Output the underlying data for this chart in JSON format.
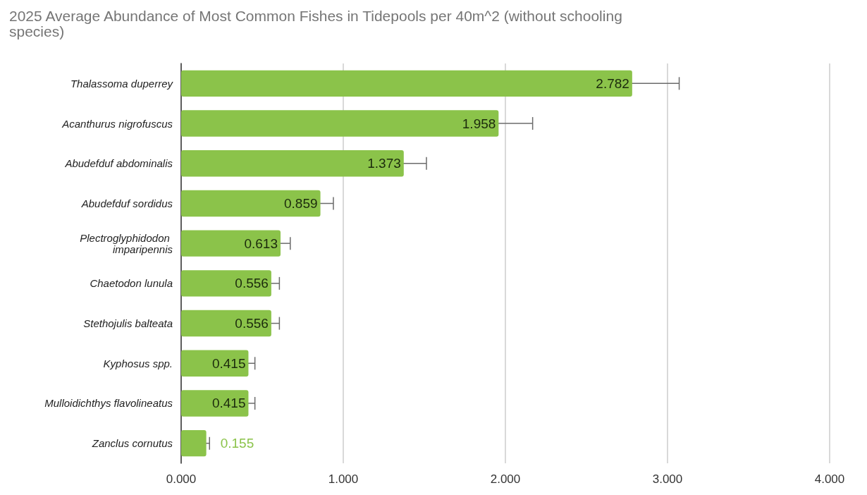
{
  "chart_data": {
    "type": "bar",
    "orientation": "horizontal",
    "title": "2025 Average Abundance of Most Common Fishes in Tidepools per 40m^2 (without schooling species)",
    "categories": [
      "Thalassoma duperrey",
      "Acanthurus nigrofuscus",
      "Abudefduf abdominalis",
      "Abudefduf sordidus",
      "Plectroglyphidodon imparipennis",
      "Chaetodon lunula",
      "Stethojulis balteata",
      "Kyphosus spp.",
      "Mulloidichthys flavolineatus",
      "Zanclus cornutus"
    ],
    "values": [
      2.782,
      1.958,
      1.373,
      0.859,
      0.613,
      0.556,
      0.556,
      0.415,
      0.415,
      0.155
    ],
    "errors": [
      0.29,
      0.21,
      0.14,
      0.08,
      0.06,
      0.05,
      0.05,
      0.04,
      0.04,
      0.02
    ],
    "color": "#8bc34a",
    "xlim": [
      0,
      4
    ],
    "xticks": [
      {
        "value": 0,
        "label": "0.000"
      },
      {
        "value": 1,
        "label": "1.000"
      },
      {
        "value": 2,
        "label": "2.000"
      },
      {
        "value": 3,
        "label": "3.000"
      },
      {
        "value": 4,
        "label": "4.000"
      }
    ],
    "grid": "x",
    "data_labels": true
  }
}
